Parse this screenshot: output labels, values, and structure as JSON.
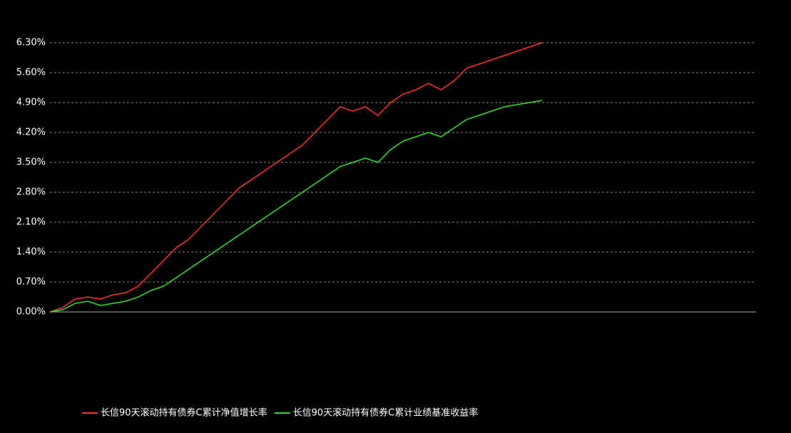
{
  "chart_data": {
    "type": "line",
    "series": [
      {
        "name": "长信90天滚动持有债券C累计净值增长率",
        "color": "#ff3030",
        "values": [
          0,
          0.1,
          0.3,
          0.35,
          0.3,
          0.4,
          0.45,
          0.6,
          0.9,
          1.2,
          1.5,
          1.7,
          2.0,
          2.3,
          2.6,
          2.9,
          3.1,
          3.3,
          3.5,
          3.7,
          3.9,
          4.2,
          4.5,
          4.8,
          4.7,
          4.8,
          4.6,
          4.9,
          5.1,
          5.2,
          5.35,
          5.2,
          5.4,
          5.7,
          5.8,
          5.9,
          6.0,
          6.1,
          6.2,
          6.3
        ]
      },
      {
        "name": "长信90天滚动持有债券C累计业绩基准收益率",
        "color": "#30e030",
        "values": [
          0,
          0.05,
          0.2,
          0.25,
          0.15,
          0.2,
          0.25,
          0.35,
          0.5,
          0.6,
          0.8,
          1.0,
          1.2,
          1.4,
          1.6,
          1.8,
          2.0,
          2.2,
          2.4,
          2.6,
          2.8,
          3.0,
          3.2,
          3.4,
          3.5,
          3.6,
          3.5,
          3.8,
          4.0,
          4.1,
          4.2,
          4.1,
          4.3,
          4.5,
          4.6,
          4.7,
          4.8,
          4.85,
          4.9,
          4.95
        ]
      }
    ],
    "ylim": [
      0,
      6.3
    ],
    "yticks": [
      {
        "value": 0,
        "label": "0.00%"
      },
      {
        "value": 0.7,
        "label": "0.70%"
      },
      {
        "value": 1.4,
        "label": "1.40%"
      },
      {
        "value": 2.1,
        "label": "2.10%"
      },
      {
        "value": 2.8,
        "label": "2.80%"
      },
      {
        "value": 3.5,
        "label": "3.50%"
      },
      {
        "value": 4.2,
        "label": "4.20%"
      },
      {
        "value": 4.9,
        "label": "4.90%"
      },
      {
        "value": 5.6,
        "label": "5.60%"
      },
      {
        "value": 6.3,
        "label": "6.30%"
      }
    ],
    "grid": true
  }
}
